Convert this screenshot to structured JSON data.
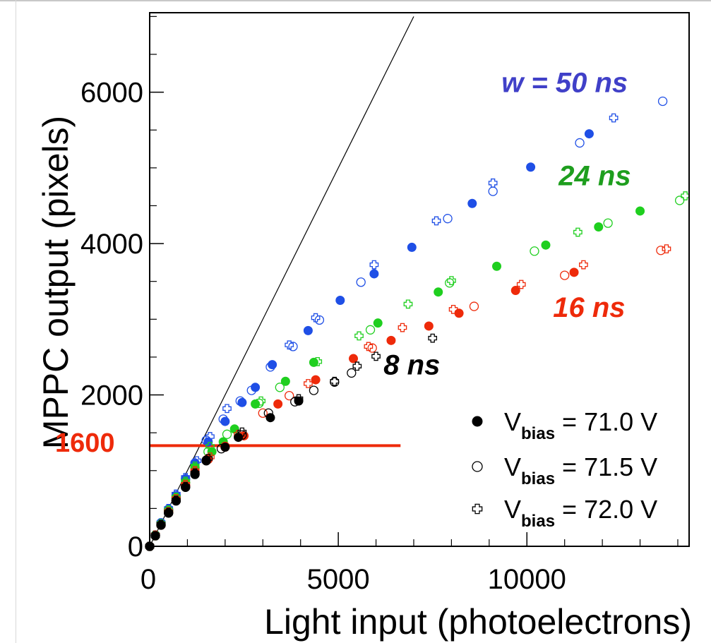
{
  "chart_data": {
    "type": "scatter",
    "xlabel": "Light input (photoelectrons)",
    "ylabel": "MPPC output (pixels)",
    "xlim": [
      0,
      14300
    ],
    "ylim": [
      0,
      7050
    ],
    "xticks": [
      "0",
      "5000",
      "10000"
    ],
    "yticks": [
      "0",
      "2000",
      "4000",
      "6000"
    ],
    "reference_line": {
      "x": [
        0,
        7000
      ],
      "y": [
        0,
        7000
      ]
    },
    "threshold": {
      "label": "1600",
      "y": 1330,
      "x_end": 6650,
      "color": "#ee2a0a"
    },
    "annotations": [
      {
        "text": "w = 50 ns",
        "x": 11000,
        "y": 6000,
        "color": "#4040c8"
      },
      {
        "text": "24 ns",
        "x": 11800,
        "y": 4770,
        "color": "#1e9e1e"
      },
      {
        "text": "16 ns",
        "x": 11650,
        "y": 3030,
        "color": "#ee2a0a"
      },
      {
        "text": "8 ns",
        "x": 6950,
        "y": 2270,
        "color": "#000000"
      }
    ],
    "legend": {
      "position": "bottom-right",
      "entries": [
        {
          "marker": "filled-circle",
          "base": "V",
          "sub": "bias",
          "rest": " = 71.0 V"
        },
        {
          "marker": "open-circle",
          "base": "V",
          "sub": "bias",
          "rest": " = 71.5 V"
        },
        {
          "marker": "open-cross",
          "base": "V",
          "sub": "bias",
          "rest": " = 72.0 V"
        }
      ]
    },
    "series": [
      {
        "color": "#1f4fe6",
        "marker": "filled-circle",
        "x": [
          0,
          150,
          300,
          500,
          700,
          950,
          1200,
          1550,
          2000,
          2450,
          2800,
          3250,
          4200,
          5050,
          5950,
          6950,
          8550,
          10100,
          11650
        ],
        "y": [
          0,
          150,
          300,
          480,
          660,
          880,
          1090,
          1380,
          1650,
          1900,
          2100,
          2400,
          2850,
          3250,
          3600,
          3950,
          4530,
          5010,
          5450
        ]
      },
      {
        "color": "#1f4fe6",
        "marker": "open-circle",
        "x": [
          0,
          150,
          300,
          500,
          700,
          950,
          1200,
          1500,
          1950,
          2400,
          2700,
          3200,
          3800,
          4500,
          5600,
          7900,
          9100,
          11400,
          13600
        ],
        "y": [
          0,
          150,
          310,
          490,
          670,
          890,
          1100,
          1400,
          1680,
          1920,
          2060,
          2370,
          2640,
          2990,
          3490,
          4330,
          4690,
          5330,
          5880
        ]
      },
      {
        "color": "#1f4fe6",
        "marker": "open-cross",
        "x": [
          0,
          150,
          300,
          500,
          700,
          950,
          1250,
          1600,
          2050,
          3700,
          4400,
          5950,
          7600,
          9100,
          12300
        ],
        "y": [
          0,
          150,
          310,
          500,
          690,
          910,
          1130,
          1450,
          1820,
          2660,
          3020,
          3720,
          4300,
          4800,
          5660
        ]
      },
      {
        "color": "#1fcf1f",
        "marker": "filled-circle",
        "x": [
          0,
          150,
          300,
          500,
          700,
          950,
          1200,
          1650,
          1950,
          2250,
          2800,
          3600,
          4350,
          6050,
          7650,
          9200,
          10500,
          11900,
          13000
        ],
        "y": [
          0,
          150,
          290,
          460,
          630,
          840,
          1040,
          1250,
          1380,
          1550,
          1880,
          2180,
          2430,
          2950,
          3360,
          3700,
          3980,
          4220,
          4430
        ]
      },
      {
        "color": "#1fcf1f",
        "marker": "open-circle",
        "x": [
          0,
          150,
          300,
          500,
          700,
          950,
          1200,
          1550,
          2050,
          2900,
          3450,
          5850,
          7950,
          10200,
          12150,
          14050
        ],
        "y": [
          0,
          140,
          290,
          470,
          640,
          840,
          1040,
          1250,
          1480,
          1890,
          2100,
          2860,
          3480,
          3900,
          4270,
          4570
        ]
      },
      {
        "color": "#1fcf1f",
        "marker": "open-cross",
        "x": [
          0,
          150,
          300,
          500,
          700,
          950,
          1200,
          1600,
          2950,
          4450,
          5550,
          6850,
          8000,
          11350,
          14200
        ],
        "y": [
          0,
          150,
          300,
          480,
          650,
          860,
          1060,
          1320,
          1920,
          2440,
          2780,
          3200,
          3510,
          4150,
          4630
        ]
      },
      {
        "color": "#ee2a0a",
        "marker": "filled-circle",
        "x": [
          0,
          150,
          300,
          500,
          700,
          950,
          1200,
          1550,
          2000,
          2500,
          3400,
          4400,
          5400,
          6400,
          7400,
          8200,
          9700,
          11250
        ],
        "y": [
          0,
          140,
          280,
          450,
          610,
          800,
          980,
          1160,
          1310,
          1460,
          1880,
          2200,
          2480,
          2720,
          2910,
          3080,
          3380,
          3620
        ]
      },
      {
        "color": "#ee2a0a",
        "marker": "open-circle",
        "x": [
          0,
          150,
          300,
          500,
          700,
          950,
          1200,
          1550,
          2000,
          3000,
          3700,
          5900,
          8600,
          11000,
          13550
        ],
        "y": [
          0,
          140,
          280,
          450,
          610,
          800,
          970,
          1150,
          1320,
          1760,
          1990,
          2620,
          3170,
          3580,
          3910
        ]
      },
      {
        "color": "#ee2a0a",
        "marker": "open-cross",
        "x": [
          0,
          150,
          300,
          500,
          700,
          950,
          1200,
          1600,
          2350,
          4200,
          5800,
          6700,
          8050,
          9850,
          11500,
          13700
        ],
        "y": [
          0,
          150,
          290,
          460,
          630,
          820,
          1000,
          1180,
          1480,
          2150,
          2640,
          2890,
          3130,
          3460,
          3720,
          3930
        ]
      },
      {
        "color": "#000000",
        "marker": "filled-circle",
        "x": [
          0,
          150,
          300,
          500,
          700,
          950,
          1200,
          1500,
          2000,
          2350,
          3200,
          3950
        ],
        "y": [
          0,
          140,
          280,
          440,
          600,
          780,
          960,
          1140,
          1310,
          1440,
          1700,
          1920
        ]
      },
      {
        "color": "#000000",
        "marker": "open-circle",
        "x": [
          0,
          150,
          300,
          500,
          700,
          950,
          1200,
          1500,
          1900,
          2450,
          3150,
          3850,
          4350,
          4900,
          5350
        ],
        "y": [
          0,
          140,
          280,
          440,
          600,
          780,
          950,
          1130,
          1290,
          1470,
          1760,
          1910,
          2060,
          2170,
          2290
        ]
      },
      {
        "color": "#000000",
        "marker": "open-cross",
        "x": [
          0,
          150,
          300,
          500,
          700,
          950,
          1200,
          1550,
          2450,
          3950,
          4900,
          5500,
          6000,
          7500
        ],
        "y": [
          0,
          140,
          290,
          450,
          610,
          790,
          970,
          1160,
          1510,
          1950,
          2180,
          2380,
          2510,
          2750
        ]
      }
    ]
  }
}
